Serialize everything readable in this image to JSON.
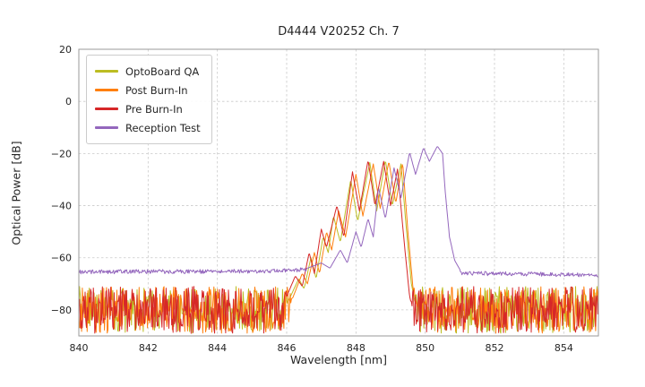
{
  "title": "D4444 V20252 Ch. 7",
  "axes": {
    "xlabel": "Wavelength [nm]",
    "ylabel": "Optical Power [dB]",
    "xlim": [
      840,
      855
    ],
    "ylim": [
      -90,
      20
    ],
    "xticks": [
      840,
      842,
      844,
      846,
      848,
      850,
      852,
      854
    ],
    "yticks": [
      20,
      0,
      -20,
      -40,
      -60,
      -80
    ],
    "grid": true,
    "grid_color": "#c9c9c9",
    "frame_color": "#9a9a9a",
    "background": "#ffffff"
  },
  "legend": {
    "position": "upper-left",
    "entries": [
      {
        "label": "OptoBoard QA",
        "color": "#bcbd22"
      },
      {
        "label": "Post Burn-In",
        "color": "#ff7f0e"
      },
      {
        "label": "Pre Burn-In",
        "color": "#d62728"
      },
      {
        "label": "Reception Test",
        "color": "#9467bd"
      }
    ]
  },
  "chart_data": {
    "type": "line",
    "xlabel": "Wavelength [nm]",
    "ylabel": "Optical Power [dB]",
    "title": "D4444 V20252 Ch. 7",
    "x_step": 0.02,
    "series": [
      {
        "name": "OptoBoard QA",
        "color": "#bcbd22",
        "seed": 1,
        "noise_floor": {
          "base_points": [
            [
              840,
              -80
            ],
            [
              855,
              -80
            ]
          ],
          "amplitude": 9
        },
        "envelope_points": [
          [
            846.0,
            -78
          ],
          [
            846.35,
            -68
          ],
          [
            846.5,
            -72
          ],
          [
            846.7,
            -60
          ],
          [
            846.85,
            -68
          ],
          [
            847.05,
            -52
          ],
          [
            847.2,
            -58
          ],
          [
            847.35,
            -44
          ],
          [
            847.55,
            -54
          ],
          [
            847.85,
            -30
          ],
          [
            848.05,
            -46
          ],
          [
            848.4,
            -23.5
          ],
          [
            848.6,
            -42
          ],
          [
            848.85,
            -22.5
          ],
          [
            849.05,
            -40
          ],
          [
            849.3,
            -24
          ],
          [
            849.45,
            -48
          ],
          [
            849.6,
            -70
          ],
          [
            849.75,
            -80
          ]
        ]
      },
      {
        "name": "Post Burn-In",
        "color": "#ff7f0e",
        "seed": 2,
        "noise_floor": {
          "base_points": [
            [
              840,
              -80
            ],
            [
              855,
              -80
            ]
          ],
          "amplitude": 9
        },
        "envelope_points": [
          [
            846.1,
            -78
          ],
          [
            846.45,
            -66
          ],
          [
            846.6,
            -70
          ],
          [
            846.8,
            -58
          ],
          [
            846.95,
            -66
          ],
          [
            847.15,
            -50
          ],
          [
            847.3,
            -57
          ],
          [
            847.5,
            -42
          ],
          [
            847.7,
            -52
          ],
          [
            848.0,
            -28
          ],
          [
            848.2,
            -44
          ],
          [
            848.5,
            -24
          ],
          [
            848.7,
            -41
          ],
          [
            848.95,
            -23
          ],
          [
            849.15,
            -39
          ],
          [
            849.35,
            -23.5
          ],
          [
            849.5,
            -50
          ],
          [
            849.65,
            -72
          ],
          [
            849.8,
            -80
          ]
        ]
      },
      {
        "name": "Pre Burn-In",
        "color": "#d62728",
        "seed": 3,
        "noise_floor": {
          "base_points": [
            [
              840,
              -80
            ],
            [
              855,
              -80
            ]
          ],
          "amplitude": 9
        },
        "envelope_points": [
          [
            845.9,
            -78
          ],
          [
            846.25,
            -67
          ],
          [
            846.45,
            -71
          ],
          [
            846.65,
            -58
          ],
          [
            846.8,
            -66
          ],
          [
            847.0,
            -49
          ],
          [
            847.15,
            -56
          ],
          [
            847.45,
            -40
          ],
          [
            847.65,
            -52
          ],
          [
            847.9,
            -27
          ],
          [
            848.1,
            -42
          ],
          [
            848.35,
            -22.5
          ],
          [
            848.55,
            -40
          ],
          [
            848.8,
            -23
          ],
          [
            849.0,
            -40
          ],
          [
            849.2,
            -26
          ],
          [
            849.4,
            -55
          ],
          [
            849.55,
            -75
          ],
          [
            849.65,
            -80
          ]
        ]
      },
      {
        "name": "Reception Test",
        "color": "#9467bd",
        "seed": 4,
        "noise_floor": {
          "base_points": [
            [
              840,
              -65.4
            ],
            [
              845,
              -65.2
            ],
            [
              846.6,
              -64.6
            ],
            [
              851,
              -66
            ],
            [
              853,
              -66.2
            ],
            [
              855,
              -66.8
            ]
          ],
          "amplitude": 0.8
        },
        "envelope_points": [
          [
            846.6,
            -64
          ],
          [
            847.0,
            -62
          ],
          [
            847.25,
            -64
          ],
          [
            847.55,
            -57
          ],
          [
            847.75,
            -62
          ],
          [
            848.0,
            -50
          ],
          [
            848.15,
            -56
          ],
          [
            848.35,
            -45
          ],
          [
            848.5,
            -52
          ],
          [
            848.65,
            -33
          ],
          [
            848.85,
            -45
          ],
          [
            849.1,
            -25.5
          ],
          [
            849.3,
            -37
          ],
          [
            849.55,
            -19.5
          ],
          [
            849.72,
            -28
          ],
          [
            849.95,
            -17.8
          ],
          [
            850.12,
            -23
          ],
          [
            850.35,
            -17.2
          ],
          [
            850.5,
            -20
          ],
          [
            850.58,
            -35
          ],
          [
            850.7,
            -52
          ],
          [
            850.85,
            -61
          ],
          [
            851.0,
            -64.5
          ]
        ]
      }
    ]
  }
}
